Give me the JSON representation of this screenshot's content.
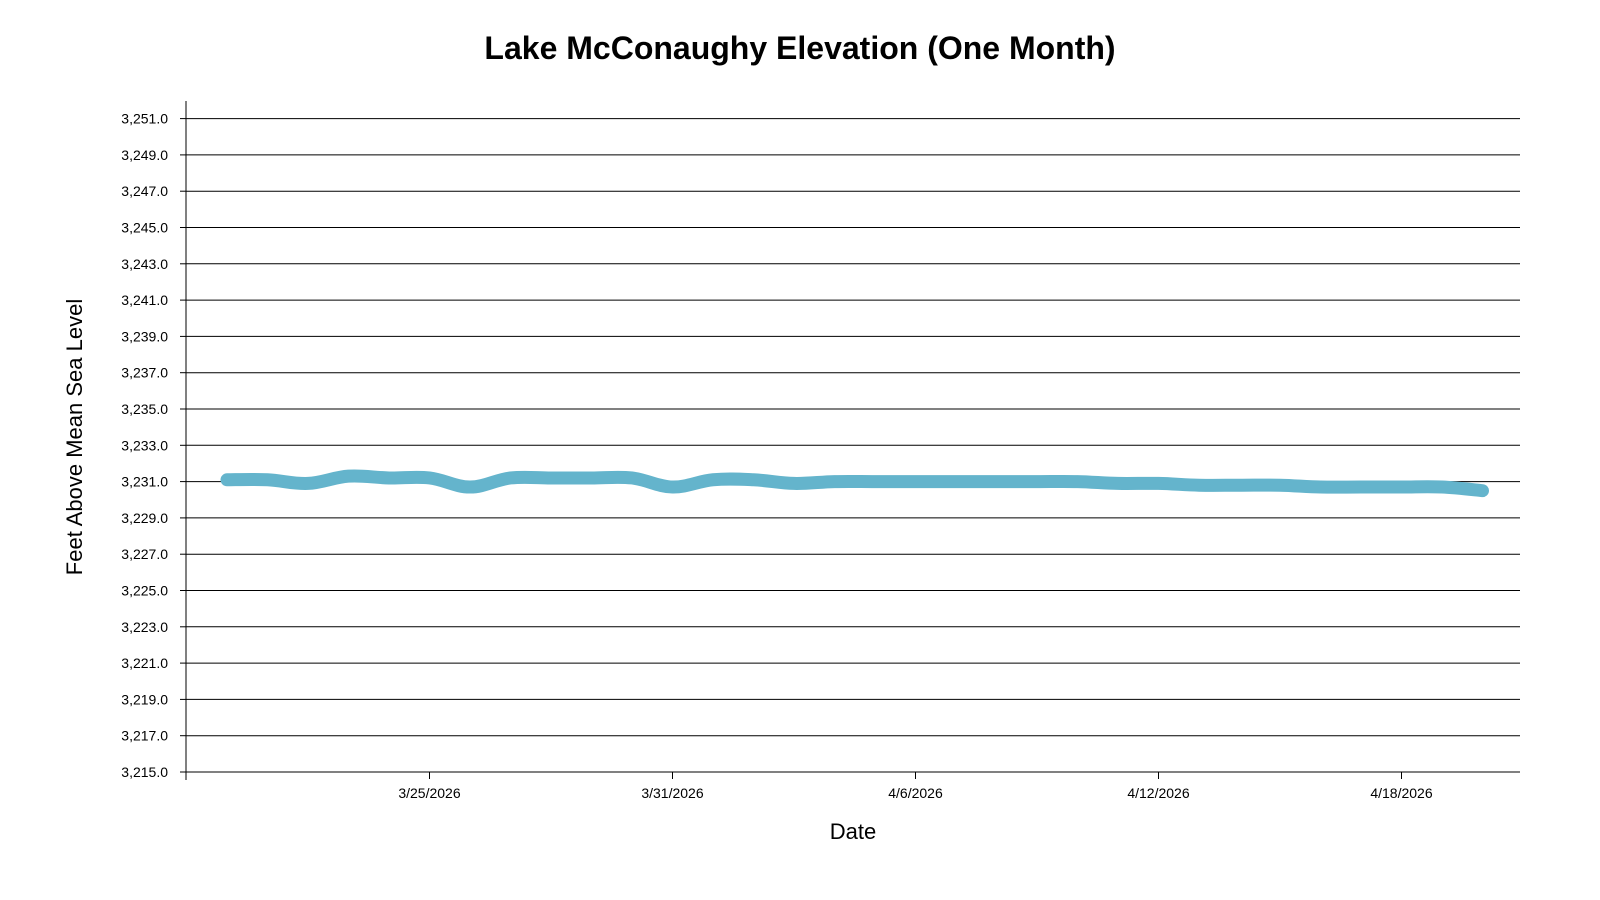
{
  "chart_data": {
    "type": "line",
    "title": "Lake McConaughy Elevation (One Month)",
    "xlabel": "Date",
    "ylabel": "Feet Above Mean Sea Level",
    "ylim": [
      3215.0,
      3252.0
    ],
    "yticks": [
      3215.0,
      3217.0,
      3219.0,
      3221.0,
      3223.0,
      3225.0,
      3227.0,
      3229.0,
      3231.0,
      3233.0,
      3235.0,
      3237.0,
      3239.0,
      3241.0,
      3243.0,
      3245.0,
      3247.0,
      3249.0,
      3251.0
    ],
    "ytick_labels": [
      "3,215.0",
      "3,217.0",
      "3,219.0",
      "3,221.0",
      "3,223.0",
      "3,225.0",
      "3,227.0",
      "3,229.0",
      "3,231.0",
      "3,233.0",
      "3,235.0",
      "3,237.0",
      "3,239.0",
      "3,241.0",
      "3,243.0",
      "3,245.0",
      "3,247.0",
      "3,249.0",
      "3,251.0"
    ],
    "xlim": [
      "2026-03-19",
      "2026-04-21"
    ],
    "xticks": [
      "2026-03-25",
      "2026-03-31",
      "2026-04-06",
      "2026-04-12",
      "2026-04-18"
    ],
    "xtick_labels": [
      "3/25/2026",
      "3/31/2026",
      "4/6/2026",
      "4/12/2026",
      "4/18/2026"
    ],
    "grid": "horizontal",
    "line_color": "#64b4cc",
    "series": [
      {
        "x": [
          "2026-03-20",
          "2026-03-21",
          "2026-03-22",
          "2026-03-23",
          "2026-03-24",
          "2026-03-25",
          "2026-03-26",
          "2026-03-27",
          "2026-03-28",
          "2026-03-29",
          "2026-03-30",
          "2026-03-31",
          "2026-04-01",
          "2026-04-02",
          "2026-04-03",
          "2026-04-04",
          "2026-04-05",
          "2026-04-06",
          "2026-04-07",
          "2026-04-08",
          "2026-04-09",
          "2026-04-10",
          "2026-04-11",
          "2026-04-12",
          "2026-04-13",
          "2026-04-14",
          "2026-04-15",
          "2026-04-16",
          "2026-04-17",
          "2026-04-18",
          "2026-04-19",
          "2026-04-20"
        ],
        "values": [
          3231.1,
          3231.1,
          3230.9,
          3231.3,
          3231.2,
          3231.2,
          3230.7,
          3231.2,
          3231.2,
          3231.2,
          3231.2,
          3230.7,
          3231.1,
          3231.1,
          3230.9,
          3231.0,
          3231.0,
          3231.0,
          3231.0,
          3231.0,
          3231.0,
          3231.0,
          3230.9,
          3230.9,
          3230.8,
          3230.8,
          3230.8,
          3230.7,
          3230.7,
          3230.7,
          3230.7,
          3230.5
        ]
      }
    ]
  }
}
